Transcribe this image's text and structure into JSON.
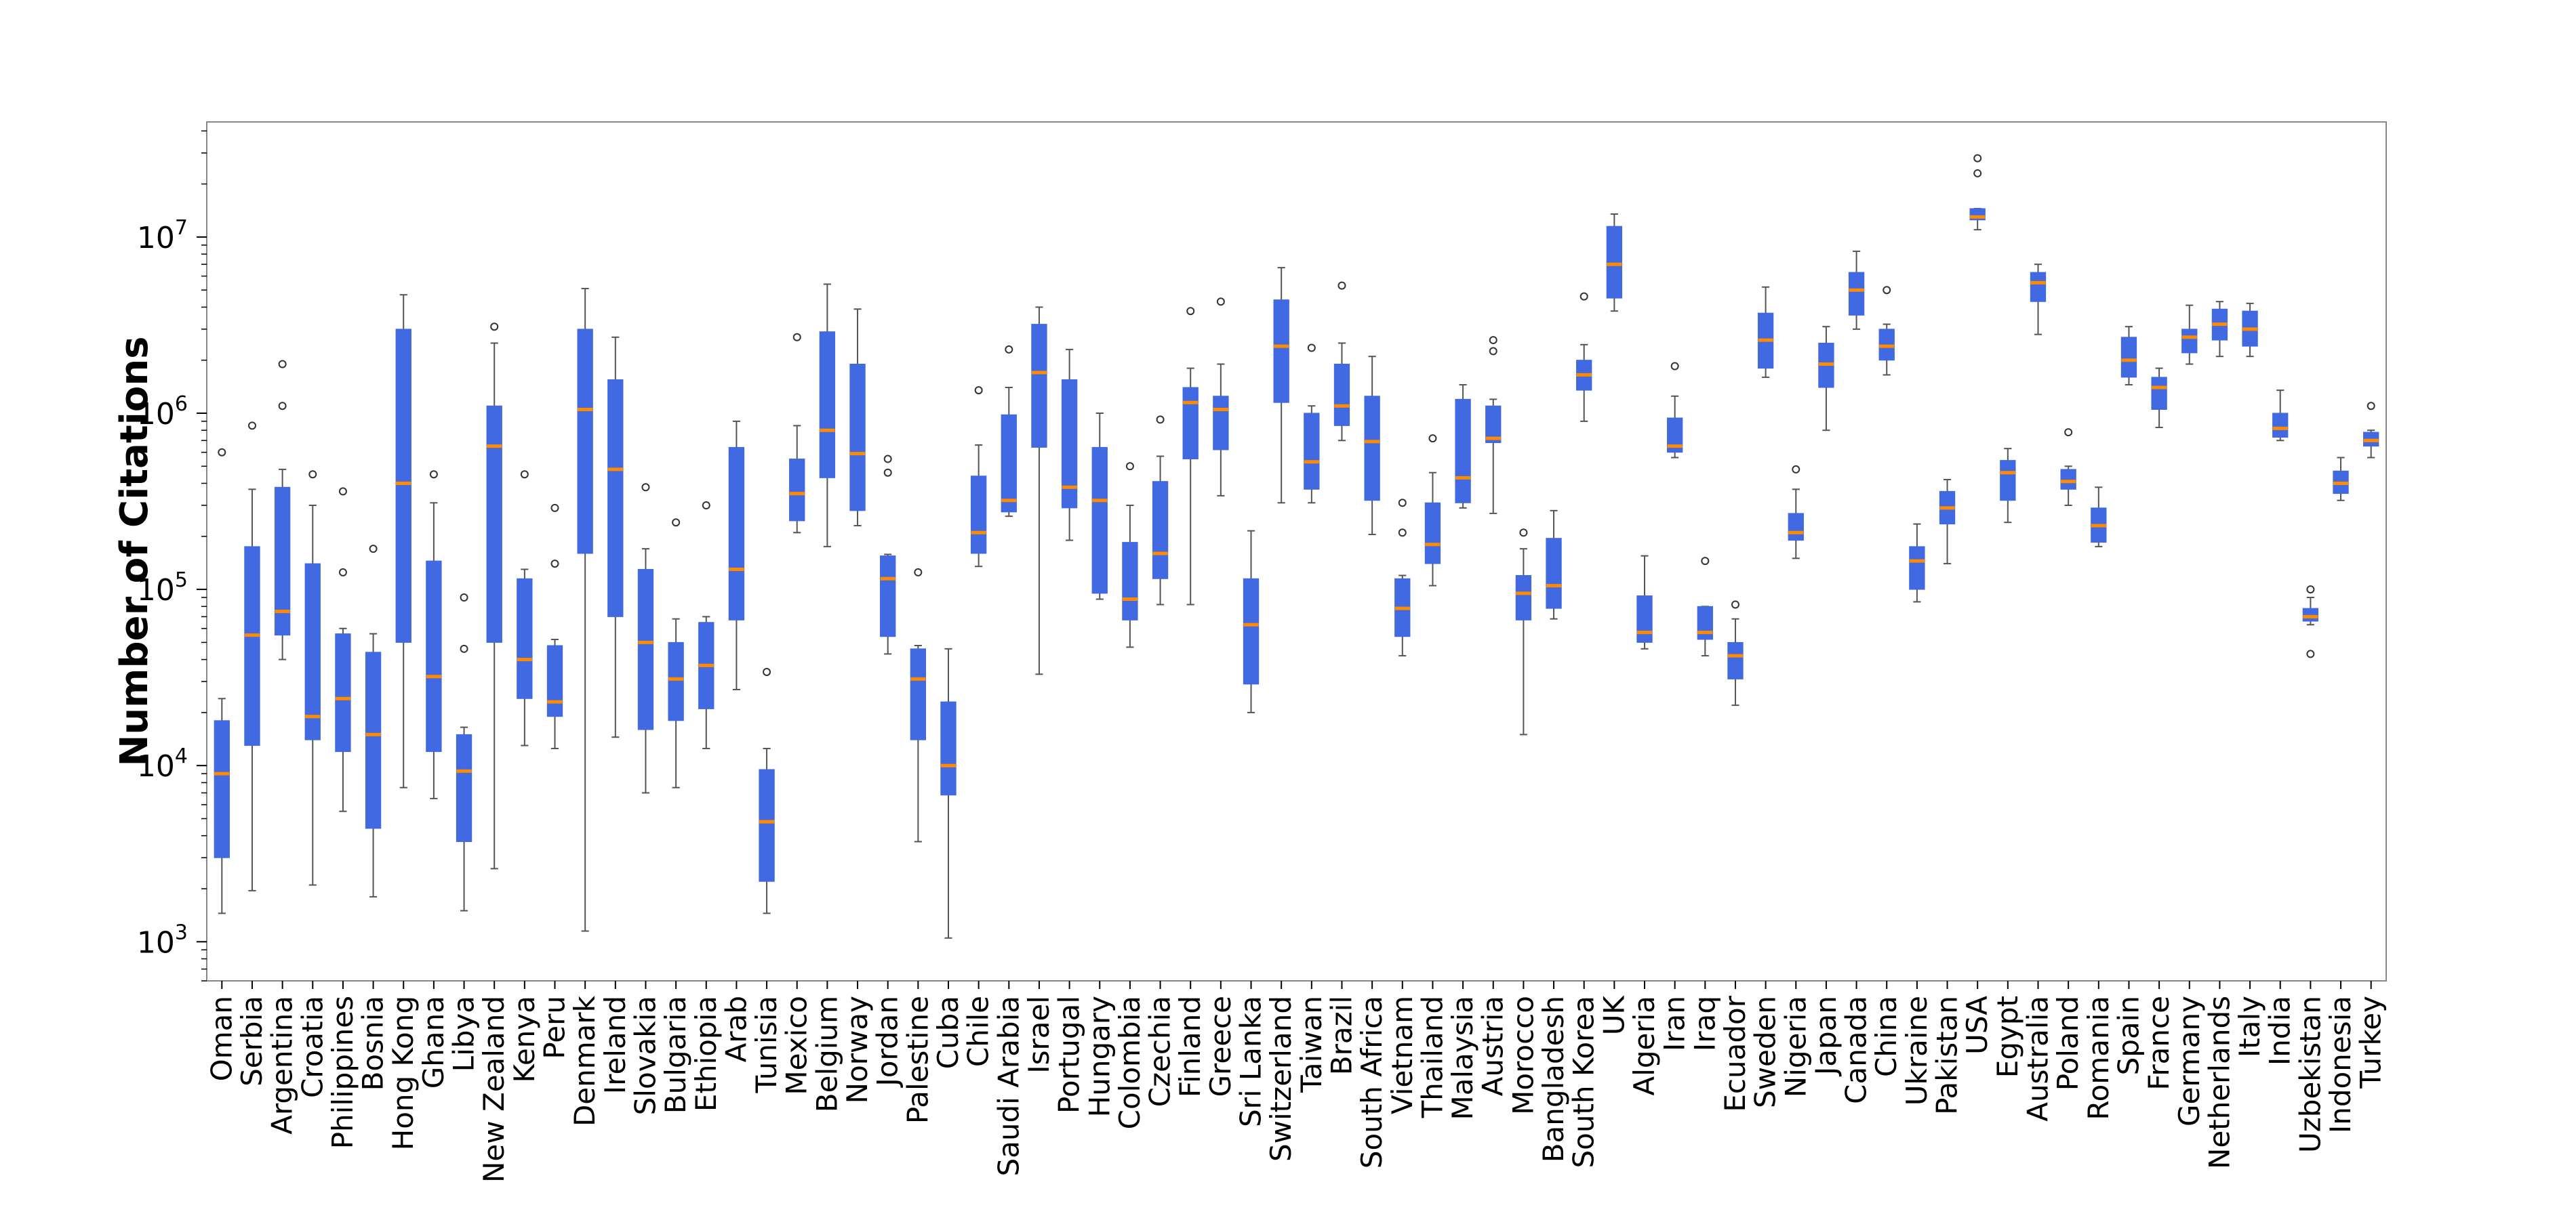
{
  "chart_data": {
    "type": "box",
    "ylabel": "Number of Citations",
    "xlabel": "",
    "title": "",
    "yscale": "log",
    "ylim": [
      600,
      45000000
    ],
    "y_ticks": [
      {
        "value": 1000,
        "base": "10",
        "exp": "3"
      },
      {
        "value": 10000,
        "base": "10",
        "exp": "4"
      },
      {
        "value": 100000,
        "base": "10",
        "exp": "5"
      },
      {
        "value": 1000000,
        "base": "10",
        "exp": "6"
      },
      {
        "value": 10000000,
        "base": "10",
        "exp": "7"
      }
    ],
    "grid": false,
    "colors": {
      "box": "#4169e1",
      "median": "#ff8c00",
      "whisker": "#555555",
      "outlier": "#333333",
      "frame": "#888888"
    },
    "boxes": [
      {
        "country": "Oman",
        "whislo": 1450,
        "q1": 3000,
        "med": 9000,
        "q3": 18000,
        "whishi": 24000,
        "fliers": [
          600000
        ]
      },
      {
        "country": "Serbia",
        "whislo": 1950,
        "q1": 13000,
        "med": 55000,
        "q3": 175000,
        "whishi": 370000,
        "fliers": [
          850000
        ]
      },
      {
        "country": "Argentina",
        "whislo": 40000,
        "q1": 55000,
        "med": 75000,
        "q3": 380000,
        "whishi": 480000,
        "fliers": [
          1100000,
          1900000
        ]
      },
      {
        "country": "Croatia",
        "whislo": 2100,
        "q1": 14000,
        "med": 19000,
        "q3": 140000,
        "whishi": 300000,
        "fliers": [
          450000
        ]
      },
      {
        "country": "Philippines",
        "whislo": 5500,
        "q1": 12000,
        "med": 24000,
        "q3": 56000,
        "whishi": 60000,
        "fliers": [
          125000,
          360000
        ]
      },
      {
        "country": "Bosnia",
        "whislo": 1800,
        "q1": 4400,
        "med": 15000,
        "q3": 44000,
        "whishi": 56000,
        "fliers": [
          170000
        ]
      },
      {
        "country": "Hong Kong",
        "whislo": 7500,
        "q1": 50000,
        "med": 400000,
        "q3": 3000000,
        "whishi": 4700000,
        "fliers": []
      },
      {
        "country": "Ghana",
        "whislo": 6500,
        "q1": 12000,
        "med": 32000,
        "q3": 145000,
        "whishi": 310000,
        "fliers": [
          450000
        ]
      },
      {
        "country": "Libya",
        "whislo": 1500,
        "q1": 3700,
        "med": 9300,
        "q3": 15000,
        "whishi": 16500,
        "fliers": [
          46000,
          90000
        ]
      },
      {
        "country": "New Zealand",
        "whislo": 2600,
        "q1": 50000,
        "med": 650000,
        "q3": 1100000,
        "whishi": 2500000,
        "fliers": [
          3100000
        ]
      },
      {
        "country": "Kenya",
        "whislo": 13000,
        "q1": 24000,
        "med": 40000,
        "q3": 115000,
        "whishi": 130000,
        "fliers": [
          450000
        ]
      },
      {
        "country": "Peru",
        "whislo": 12500,
        "q1": 19000,
        "med": 23000,
        "q3": 48000,
        "whishi": 52000,
        "fliers": [
          140000,
          290000
        ]
      },
      {
        "country": "Denmark",
        "whislo": 1150,
        "q1": 160000,
        "med": 1050000,
        "q3": 3000000,
        "whishi": 5100000,
        "fliers": []
      },
      {
        "country": "Ireland",
        "whislo": 14500,
        "q1": 70000,
        "med": 480000,
        "q3": 1550000,
        "whishi": 2700000,
        "fliers": []
      },
      {
        "country": "Slovakia",
        "whislo": 7000,
        "q1": 16000,
        "med": 50000,
        "q3": 130000,
        "whishi": 170000,
        "fliers": [
          380000
        ]
      },
      {
        "country": "Bulgaria",
        "whislo": 7500,
        "q1": 18000,
        "med": 31000,
        "q3": 50000,
        "whishi": 68000,
        "fliers": [
          240000
        ]
      },
      {
        "country": "Ethiopia",
        "whislo": 12500,
        "q1": 21000,
        "med": 37000,
        "q3": 65000,
        "whishi": 70000,
        "fliers": [
          300000
        ]
      },
      {
        "country": "Arab",
        "whislo": 27000,
        "q1": 67000,
        "med": 130000,
        "q3": 640000,
        "whishi": 900000,
        "fliers": []
      },
      {
        "country": "Tunisia",
        "whislo": 1450,
        "q1": 2200,
        "med": 4800,
        "q3": 9500,
        "whishi": 12500,
        "fliers": [
          34000
        ]
      },
      {
        "country": "Mexico",
        "whislo": 210000,
        "q1": 245000,
        "med": 350000,
        "q3": 550000,
        "whishi": 850000,
        "fliers": [
          2700000
        ]
      },
      {
        "country": "Belgium",
        "whislo": 175000,
        "q1": 430000,
        "med": 800000,
        "q3": 2900000,
        "whishi": 5400000,
        "fliers": []
      },
      {
        "country": "Norway",
        "whislo": 230000,
        "q1": 280000,
        "med": 590000,
        "q3": 1900000,
        "whishi": 3900000,
        "fliers": []
      },
      {
        "country": "Jordan",
        "whislo": 43000,
        "q1": 54000,
        "med": 115000,
        "q3": 155000,
        "whishi": 158000,
        "fliers": [
          460000,
          550000
        ]
      },
      {
        "country": "Palestine",
        "whislo": 3700,
        "q1": 14000,
        "med": 31000,
        "q3": 46000,
        "whishi": 48000,
        "fliers": [
          125000
        ]
      },
      {
        "country": "Cuba",
        "whislo": 1050,
        "q1": 6800,
        "med": 10000,
        "q3": 23000,
        "whishi": 46000,
        "fliers": []
      },
      {
        "country": "Chile",
        "whislo": 135000,
        "q1": 160000,
        "med": 210000,
        "q3": 440000,
        "whishi": 660000,
        "fliers": [
          1350000
        ]
      },
      {
        "country": "Saudi Arabia",
        "whislo": 260000,
        "q1": 275000,
        "med": 320000,
        "q3": 980000,
        "whishi": 1400000,
        "fliers": [
          2300000
        ]
      },
      {
        "country": "Israel",
        "whislo": 33000,
        "q1": 640000,
        "med": 1700000,
        "q3": 3200000,
        "whishi": 4000000,
        "fliers": []
      },
      {
        "country": "Portugal",
        "whislo": 190000,
        "q1": 290000,
        "med": 380000,
        "q3": 1550000,
        "whishi": 2300000,
        "fliers": []
      },
      {
        "country": "Hungary",
        "whislo": 88000,
        "q1": 95000,
        "med": 320000,
        "q3": 640000,
        "whishi": 1000000,
        "fliers": []
      },
      {
        "country": "Colombia",
        "whislo": 47000,
        "q1": 67000,
        "med": 88000,
        "q3": 185000,
        "whishi": 300000,
        "fliers": [
          500000
        ]
      },
      {
        "country": "Czechia",
        "whislo": 82000,
        "q1": 115000,
        "med": 160000,
        "q3": 410000,
        "whishi": 570000,
        "fliers": [
          920000
        ]
      },
      {
        "country": "Finland",
        "whislo": 82000,
        "q1": 550000,
        "med": 1150000,
        "q3": 1400000,
        "whishi": 1800000,
        "fliers": [
          3800000
        ]
      },
      {
        "country": "Greece",
        "whislo": 340000,
        "q1": 620000,
        "med": 1050000,
        "q3": 1250000,
        "whishi": 1900000,
        "fliers": [
          4300000
        ]
      },
      {
        "country": "Sri Lanka",
        "whislo": 20000,
        "q1": 29000,
        "med": 63000,
        "q3": 115000,
        "whishi": 215000,
        "fliers": []
      },
      {
        "country": "Switzerland",
        "whislo": 310000,
        "q1": 1150000,
        "med": 2400000,
        "q3": 4400000,
        "whishi": 6700000,
        "fliers": []
      },
      {
        "country": "Taiwan",
        "whislo": 310000,
        "q1": 370000,
        "med": 530000,
        "q3": 1000000,
        "whishi": 1100000,
        "fliers": [
          2350000
        ]
      },
      {
        "country": "Brazil",
        "whislo": 700000,
        "q1": 850000,
        "med": 1100000,
        "q3": 1900000,
        "whishi": 2500000,
        "fliers": [
          5300000
        ]
      },
      {
        "country": "South Africa",
        "whislo": 205000,
        "q1": 320000,
        "med": 690000,
        "q3": 1250000,
        "whishi": 2100000,
        "fliers": []
      },
      {
        "country": "Vietnam",
        "whislo": 42000,
        "q1": 54000,
        "med": 78000,
        "q3": 115000,
        "whishi": 120000,
        "fliers": [
          210000,
          310000
        ]
      },
      {
        "country": "Thailand",
        "whislo": 105000,
        "q1": 140000,
        "med": 180000,
        "q3": 310000,
        "whishi": 460000,
        "fliers": [
          720000
        ]
      },
      {
        "country": "Malaysia",
        "whislo": 290000,
        "q1": 310000,
        "med": 430000,
        "q3": 1200000,
        "whishi": 1450000,
        "fliers": []
      },
      {
        "country": "Austria",
        "whislo": 270000,
        "q1": 680000,
        "med": 720000,
        "q3": 1100000,
        "whishi": 1200000,
        "fliers": [
          2250000,
          2600000
        ]
      },
      {
        "country": "Morocco",
        "whislo": 15000,
        "q1": 67000,
        "med": 95000,
        "q3": 120000,
        "whishi": 170000,
        "fliers": [
          210000
        ]
      },
      {
        "country": "Bangladesh",
        "whislo": 68000,
        "q1": 78000,
        "med": 105000,
        "q3": 195000,
        "whishi": 280000,
        "fliers": []
      },
      {
        "country": "South Korea",
        "whislo": 900000,
        "q1": 1350000,
        "med": 1650000,
        "q3": 2000000,
        "whishi": 2450000,
        "fliers": [
          4600000
        ]
      },
      {
        "country": "UK",
        "whislo": 3800000,
        "q1": 4500000,
        "med": 7000000,
        "q3": 11500000,
        "whishi": 13500000,
        "fliers": []
      },
      {
        "country": "Algeria",
        "whislo": 46000,
        "q1": 50000,
        "med": 57000,
        "q3": 92000,
        "whishi": 155000,
        "fliers": []
      },
      {
        "country": "Iran",
        "whislo": 560000,
        "q1": 600000,
        "med": 650000,
        "q3": 940000,
        "whishi": 1250000,
        "fliers": [
          1850000
        ]
      },
      {
        "country": "Iraq",
        "whislo": 42000,
        "q1": 52000,
        "med": 57000,
        "q3": 80000,
        "whishi": 80000,
        "fliers": [
          145000
        ]
      },
      {
        "country": "Ecuador",
        "whislo": 22000,
        "q1": 31000,
        "med": 42000,
        "q3": 50000,
        "whishi": 68000,
        "fliers": [
          82000
        ]
      },
      {
        "country": "Sweden",
        "whislo": 1600000,
        "q1": 1800000,
        "med": 2600000,
        "q3": 3700000,
        "whishi": 5200000,
        "fliers": []
      },
      {
        "country": "Nigeria",
        "whislo": 150000,
        "q1": 190000,
        "med": 210000,
        "q3": 270000,
        "whishi": 370000,
        "fliers": [
          480000
        ]
      },
      {
        "country": "Japan",
        "whislo": 800000,
        "q1": 1400000,
        "med": 1900000,
        "q3": 2500000,
        "whishi": 3100000,
        "fliers": []
      },
      {
        "country": "Canada",
        "whislo": 3000000,
        "q1": 3600000,
        "med": 5000000,
        "q3": 6300000,
        "whishi": 8300000,
        "fliers": []
      },
      {
        "country": "China",
        "whislo": 1650000,
        "q1": 2000000,
        "med": 2400000,
        "q3": 3000000,
        "whishi": 3200000,
        "fliers": [
          5000000
        ]
      },
      {
        "country": "Ukraine",
        "whislo": 85000,
        "q1": 100000,
        "med": 145000,
        "q3": 175000,
        "whishi": 235000,
        "fliers": []
      },
      {
        "country": "Pakistan",
        "whislo": 140000,
        "q1": 235000,
        "med": 290000,
        "q3": 360000,
        "whishi": 420000,
        "fliers": []
      },
      {
        "country": "USA",
        "whislo": 11000000,
        "q1": 12500000,
        "med": 13000000,
        "q3": 14500000,
        "whishi": 14500000,
        "fliers": [
          23000000,
          28000000
        ]
      },
      {
        "country": "Egypt",
        "whislo": 240000,
        "q1": 320000,
        "med": 460000,
        "q3": 540000,
        "whishi": 630000,
        "fliers": []
      },
      {
        "country": "Australia",
        "whislo": 2800000,
        "q1": 4300000,
        "med": 5500000,
        "q3": 6300000,
        "whishi": 7000000,
        "fliers": []
      },
      {
        "country": "Poland",
        "whislo": 300000,
        "q1": 370000,
        "med": 410000,
        "q3": 480000,
        "whishi": 500000,
        "fliers": [
          780000
        ]
      },
      {
        "country": "Romania",
        "whislo": 175000,
        "q1": 185000,
        "med": 230000,
        "q3": 290000,
        "whishi": 380000,
        "fliers": []
      },
      {
        "country": "Spain",
        "whislo": 1450000,
        "q1": 1600000,
        "med": 2000000,
        "q3": 2700000,
        "whishi": 3100000,
        "fliers": []
      },
      {
        "country": "France",
        "whislo": 830000,
        "q1": 1050000,
        "med": 1400000,
        "q3": 1600000,
        "whishi": 1800000,
        "fliers": []
      },
      {
        "country": "Germany",
        "whislo": 1900000,
        "q1": 2200000,
        "med": 2700000,
        "q3": 3000000,
        "whishi": 4100000,
        "fliers": []
      },
      {
        "country": "Netherlands",
        "whislo": 2100000,
        "q1": 2600000,
        "med": 3200000,
        "q3": 3900000,
        "whishi": 4300000,
        "fliers": []
      },
      {
        "country": "Italy",
        "whislo": 2100000,
        "q1": 2400000,
        "med": 3000000,
        "q3": 3800000,
        "whishi": 4200000,
        "fliers": []
      },
      {
        "country": "India",
        "whislo": 700000,
        "q1": 730000,
        "med": 820000,
        "q3": 1000000,
        "whishi": 1350000,
        "fliers": []
      },
      {
        "country": "Uzbekistan",
        "whislo": 63000,
        "q1": 66000,
        "med": 70000,
        "q3": 78000,
        "whishi": 90000,
        "fliers": [
          43000,
          100000
        ]
      },
      {
        "country": "Indonesia",
        "whislo": 320000,
        "q1": 350000,
        "med": 400000,
        "q3": 470000,
        "whishi": 560000,
        "fliers": []
      },
      {
        "country": "Turkey",
        "whislo": 560000,
        "q1": 650000,
        "med": 700000,
        "q3": 780000,
        "whishi": 800000,
        "fliers": [
          1100000
        ]
      }
    ]
  }
}
